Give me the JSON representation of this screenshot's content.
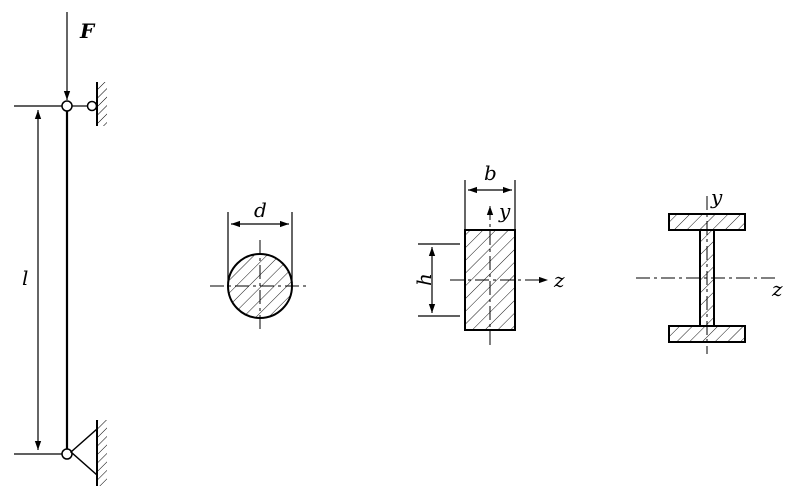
{
  "column": {
    "force_label": "F",
    "length_label": "l"
  },
  "circle_section": {
    "diameter_label": "d"
  },
  "rect_section": {
    "width_label": "b",
    "height_label": "h",
    "y_label": "y",
    "z_label": "z"
  },
  "i_section": {
    "y_label": "y",
    "z_label": "z"
  }
}
